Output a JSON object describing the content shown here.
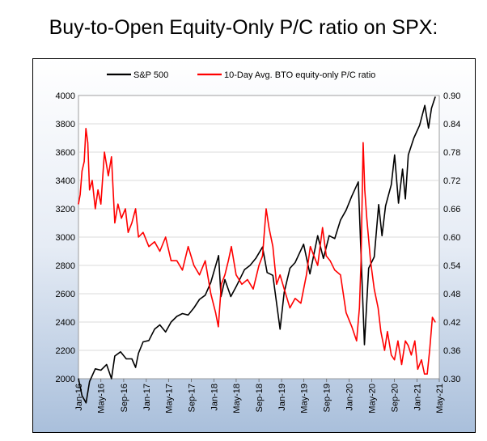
{
  "page": {
    "title": "Buy-to-Open Equity-Only P/C ratio on SPX:"
  },
  "chart_data": {
    "type": "line",
    "title": "Buy-to-Open Equity-Only P/C ratio on SPX:",
    "legend": {
      "placement": "top"
    },
    "grid": true,
    "x": {
      "type": "date",
      "range": [
        "2016-01-01",
        "2021-05-01"
      ],
      "tick_labels": [
        "Jan-16",
        "May-16",
        "Sep-16",
        "Jan-17",
        "May-17",
        "Sep-17",
        "Jan-18",
        "May-18",
        "Sep-18",
        "Jan-19",
        "May-19",
        "Sep-19",
        "Jan-20",
        "May-20",
        "Sep-20",
        "Jan-21",
        "May-21"
      ]
    },
    "y_left": {
      "range": [
        2000,
        4000
      ],
      "tick_labels": [
        "2000",
        "2200",
        "2400",
        "2600",
        "2800",
        "3000",
        "3200",
        "3400",
        "3600",
        "3800",
        "4000"
      ]
    },
    "y_right": {
      "range": [
        0.3,
        0.9
      ],
      "tick_labels": [
        "0.30",
        "0.36",
        "0.42",
        "0.48",
        "0.54",
        "0.60",
        "0.66",
        "0.72",
        "0.78",
        "0.84",
        "0.90"
      ]
    },
    "series": [
      {
        "name": "S&P 500",
        "axis": "left",
        "color": "#000000",
        "points": [
          [
            "2016-01-01",
            2000
          ],
          [
            "2016-01-20",
            1880
          ],
          [
            "2016-02-11",
            1830
          ],
          [
            "2016-03-01",
            1980
          ],
          [
            "2016-04-01",
            2070
          ],
          [
            "2016-05-01",
            2060
          ],
          [
            "2016-06-01",
            2100
          ],
          [
            "2016-06-27",
            2000
          ],
          [
            "2016-07-15",
            2160
          ],
          [
            "2016-08-15",
            2190
          ],
          [
            "2016-09-15",
            2140
          ],
          [
            "2016-10-15",
            2140
          ],
          [
            "2016-11-04",
            2080
          ],
          [
            "2016-11-20",
            2180
          ],
          [
            "2016-12-15",
            2260
          ],
          [
            "2017-01-15",
            2270
          ],
          [
            "2017-02-15",
            2350
          ],
          [
            "2017-03-15",
            2380
          ],
          [
            "2017-04-15",
            2330
          ],
          [
            "2017-05-15",
            2400
          ],
          [
            "2017-06-15",
            2440
          ],
          [
            "2017-07-15",
            2460
          ],
          [
            "2017-08-15",
            2450
          ],
          [
            "2017-09-15",
            2500
          ],
          [
            "2017-10-15",
            2560
          ],
          [
            "2017-11-15",
            2590
          ],
          [
            "2017-12-15",
            2680
          ],
          [
            "2018-01-26",
            2870
          ],
          [
            "2018-02-08",
            2580
          ],
          [
            "2018-03-01",
            2700
          ],
          [
            "2018-04-02",
            2580
          ],
          [
            "2018-05-01",
            2650
          ],
          [
            "2018-06-15",
            2770
          ],
          [
            "2018-07-15",
            2800
          ],
          [
            "2018-08-15",
            2850
          ],
          [
            "2018-09-20",
            2930
          ],
          [
            "2018-10-15",
            2750
          ],
          [
            "2018-11-15",
            2730
          ],
          [
            "2018-12-24",
            2350
          ],
          [
            "2019-01-15",
            2610
          ],
          [
            "2019-02-15",
            2780
          ],
          [
            "2019-03-15",
            2820
          ],
          [
            "2019-04-30",
            2950
          ],
          [
            "2019-06-03",
            2740
          ],
          [
            "2019-07-15",
            3010
          ],
          [
            "2019-08-15",
            2850
          ],
          [
            "2019-09-15",
            3010
          ],
          [
            "2019-10-15",
            2990
          ],
          [
            "2019-11-15",
            3120
          ],
          [
            "2019-12-15",
            3190
          ],
          [
            "2020-01-15",
            3290
          ],
          [
            "2020-02-19",
            3390
          ],
          [
            "2020-03-23",
            2240
          ],
          [
            "2020-04-15",
            2780
          ],
          [
            "2020-05-15",
            2860
          ],
          [
            "2020-06-08",
            3230
          ],
          [
            "2020-06-26",
            3010
          ],
          [
            "2020-07-15",
            3220
          ],
          [
            "2020-08-15",
            3370
          ],
          [
            "2020-09-02",
            3580
          ],
          [
            "2020-09-23",
            3240
          ],
          [
            "2020-10-15",
            3480
          ],
          [
            "2020-10-30",
            3270
          ],
          [
            "2020-11-15",
            3580
          ],
          [
            "2020-12-15",
            3700
          ],
          [
            "2021-01-15",
            3790
          ],
          [
            "2021-02-12",
            3930
          ],
          [
            "2021-03-04",
            3770
          ],
          [
            "2021-03-20",
            3910
          ],
          [
            "2021-04-09",
            3990
          ]
        ]
      },
      {
        "name": "10-Day Avg. BTO equity-only P/C ratio",
        "axis": "right",
        "color": "#ff0000",
        "points": [
          [
            "2016-01-01",
            0.67
          ],
          [
            "2016-01-10",
            0.69
          ],
          [
            "2016-01-20",
            0.74
          ],
          [
            "2016-02-01",
            0.76
          ],
          [
            "2016-02-10",
            0.83
          ],
          [
            "2016-02-20",
            0.8
          ],
          [
            "2016-03-01",
            0.7
          ],
          [
            "2016-03-15",
            0.72
          ],
          [
            "2016-04-01",
            0.66
          ],
          [
            "2016-04-15",
            0.7
          ],
          [
            "2016-05-01",
            0.67
          ],
          [
            "2016-05-20",
            0.78
          ],
          [
            "2016-06-10",
            0.73
          ],
          [
            "2016-06-27",
            0.77
          ],
          [
            "2016-07-15",
            0.63
          ],
          [
            "2016-08-01",
            0.67
          ],
          [
            "2016-08-20",
            0.64
          ],
          [
            "2016-09-10",
            0.66
          ],
          [
            "2016-09-25",
            0.61
          ],
          [
            "2016-10-15",
            0.63
          ],
          [
            "2016-11-04",
            0.66
          ],
          [
            "2016-11-20",
            0.6
          ],
          [
            "2016-12-15",
            0.61
          ],
          [
            "2017-01-15",
            0.58
          ],
          [
            "2017-02-15",
            0.59
          ],
          [
            "2017-03-15",
            0.57
          ],
          [
            "2017-04-15",
            0.6
          ],
          [
            "2017-05-15",
            0.55
          ],
          [
            "2017-06-15",
            0.55
          ],
          [
            "2017-07-15",
            0.53
          ],
          [
            "2017-08-15",
            0.58
          ],
          [
            "2017-09-15",
            0.54
          ],
          [
            "2017-10-15",
            0.52
          ],
          [
            "2017-11-15",
            0.55
          ],
          [
            "2017-12-15",
            0.48
          ],
          [
            "2018-01-10",
            0.44
          ],
          [
            "2018-01-25",
            0.41
          ],
          [
            "2018-02-10",
            0.5
          ],
          [
            "2018-03-01",
            0.52
          ],
          [
            "2018-03-20",
            0.55
          ],
          [
            "2018-04-05",
            0.58
          ],
          [
            "2018-05-01",
            0.52
          ],
          [
            "2018-06-01",
            0.5
          ],
          [
            "2018-07-01",
            0.51
          ],
          [
            "2018-08-01",
            0.49
          ],
          [
            "2018-09-01",
            0.54
          ],
          [
            "2018-09-20",
            0.56
          ],
          [
            "2018-10-10",
            0.66
          ],
          [
            "2018-10-25",
            0.62
          ],
          [
            "2018-11-15",
            0.58
          ],
          [
            "2018-12-05",
            0.5
          ],
          [
            "2018-12-24",
            0.52
          ],
          [
            "2019-01-15",
            0.49
          ],
          [
            "2019-02-15",
            0.45
          ],
          [
            "2019-03-15",
            0.47
          ],
          [
            "2019-04-15",
            0.46
          ],
          [
            "2019-05-15",
            0.52
          ],
          [
            "2019-06-05",
            0.58
          ],
          [
            "2019-06-25",
            0.56
          ],
          [
            "2019-07-15",
            0.54
          ],
          [
            "2019-08-10",
            0.62
          ],
          [
            "2019-08-30",
            0.56
          ],
          [
            "2019-09-20",
            0.55
          ],
          [
            "2019-10-15",
            0.53
          ],
          [
            "2019-11-15",
            0.52
          ],
          [
            "2019-12-15",
            0.44
          ],
          [
            "2020-01-15",
            0.41
          ],
          [
            "2020-02-10",
            0.38
          ],
          [
            "2020-02-25",
            0.45
          ],
          [
            "2020-03-05",
            0.55
          ],
          [
            "2020-03-16",
            0.8
          ],
          [
            "2020-03-25",
            0.7
          ],
          [
            "2020-04-05",
            0.64
          ],
          [
            "2020-04-25",
            0.55
          ],
          [
            "2020-05-15",
            0.49
          ],
          [
            "2020-06-05",
            0.45
          ],
          [
            "2020-06-20",
            0.4
          ],
          [
            "2020-07-10",
            0.36
          ],
          [
            "2020-07-25",
            0.4
          ],
          [
            "2020-08-15",
            0.35
          ],
          [
            "2020-09-01",
            0.34
          ],
          [
            "2020-09-20",
            0.38
          ],
          [
            "2020-10-10",
            0.33
          ],
          [
            "2020-10-30",
            0.38
          ],
          [
            "2020-11-15",
            0.37
          ],
          [
            "2020-12-01",
            0.35
          ],
          [
            "2020-12-20",
            0.38
          ],
          [
            "2021-01-05",
            0.32
          ],
          [
            "2021-01-25",
            0.34
          ],
          [
            "2021-02-10",
            0.31
          ],
          [
            "2021-02-25",
            0.31
          ],
          [
            "2021-03-10",
            0.36
          ],
          [
            "2021-03-25",
            0.43
          ],
          [
            "2021-04-09",
            0.42
          ]
        ]
      }
    ]
  }
}
